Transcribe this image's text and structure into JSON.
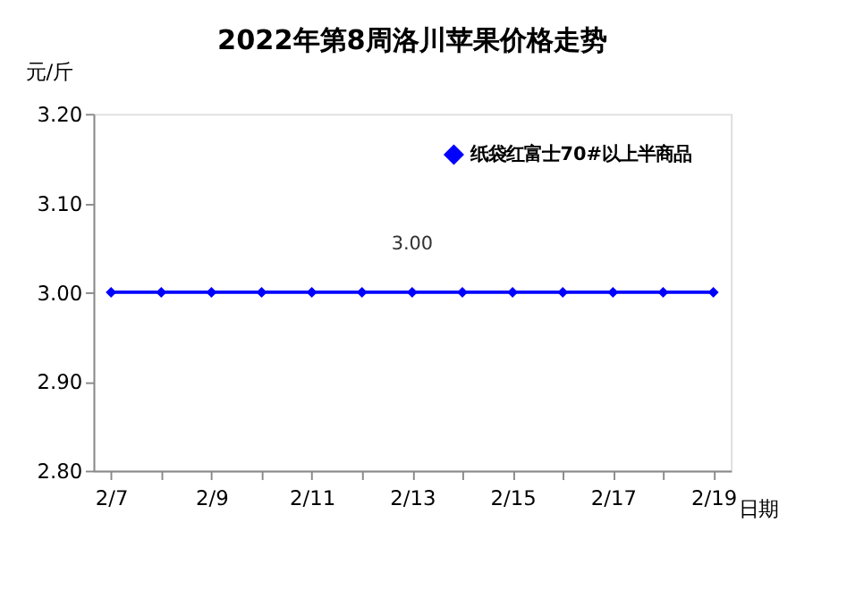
{
  "chart_data": {
    "type": "line",
    "title": "2022年第8周洛川苹果价格走势",
    "xlabel": "日期",
    "ylabel": "元/斤",
    "categories": [
      "2/7",
      null,
      "2/9",
      null,
      "2/11",
      null,
      "2/13",
      null,
      "2/15",
      null,
      "2/17",
      null,
      "2/19"
    ],
    "series": [
      {
        "name": "纸袋红富士70#以上半商品",
        "color": "#0000ff",
        "values": [
          3.0,
          3.0,
          3.0,
          3.0,
          3.0,
          3.0,
          3.0,
          3.0,
          3.0,
          3.0,
          3.0,
          3.0,
          3.0
        ],
        "value_labels": [
          null,
          null,
          null,
          null,
          null,
          null,
          "3.00",
          null,
          null,
          null,
          null,
          null,
          null
        ]
      }
    ],
    "ylim": [
      2.8,
      3.2
    ],
    "yticks": [
      {
        "value": 2.8,
        "label": "2.80"
      },
      {
        "value": 2.9,
        "label": "2.90"
      },
      {
        "value": 3.0,
        "label": "3.00"
      },
      {
        "value": 3.1,
        "label": "3.10"
      },
      {
        "value": 3.2,
        "label": "3.20"
      }
    ],
    "grid": false,
    "legend": "top right",
    "marker": "diamond",
    "line_style": "solid"
  }
}
